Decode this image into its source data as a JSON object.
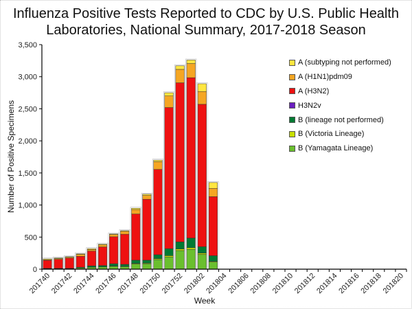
{
  "chart_data": {
    "type": "bar",
    "stacked": true,
    "title": "Influenza Positive Tests Reported to CDC by U.S. Public Health Laboratories, National Summary, 2017-2018 Season",
    "title_lines": [
      "Influenza Positive Tests Reported to CDC by U.S. Public Health",
      "Laboratories, National Summary, 2017-2018 Season"
    ],
    "xlabel": "Week",
    "ylabel": "Number of Positive Specimens",
    "ylim": [
      0,
      3500
    ],
    "yticks": [
      0,
      500,
      1000,
      1500,
      2000,
      2500,
      3000,
      3500
    ],
    "ytick_labels": [
      "0",
      "500",
      "1,000",
      "1,500",
      "2,000",
      "2,500",
      "3,000",
      "3,500"
    ],
    "grid": false,
    "legend_position": "top-right",
    "categories": [
      "201740",
      "201741",
      "201742",
      "201743",
      "201744",
      "201745",
      "201746",
      "201747",
      "201748",
      "201749",
      "201750",
      "201751",
      "201752",
      "201801",
      "201802",
      "201803",
      "201804",
      "201805",
      "201806",
      "201807",
      "201808",
      "201809",
      "201810",
      "201811",
      "201812",
      "201813",
      "201814",
      "201815",
      "201816",
      "201817",
      "201818",
      "201819",
      "201820"
    ],
    "xtick_labels": [
      "201740",
      "201742",
      "201744",
      "201746",
      "201748",
      "201750",
      "201752",
      "201802",
      "201804",
      "201806",
      "201808",
      "201810",
      "201812",
      "201814",
      "201816",
      "201818",
      "201820"
    ],
    "series": [
      {
        "name": "B (Yamagata Lineage)",
        "color": "#6abf2e",
        "values": [
          8,
          8,
          8,
          20,
          30,
          35,
          45,
          40,
          80,
          85,
          150,
          190,
          290,
          310,
          230,
          110,
          0,
          0,
          0,
          0,
          0,
          0,
          0,
          0,
          0,
          0,
          0,
          0,
          0,
          0,
          0,
          0,
          0
        ]
      },
      {
        "name": "B (Victoria Lineage)",
        "color": "#c8e000",
        "values": [
          0,
          0,
          0,
          0,
          2,
          2,
          5,
          5,
          10,
          10,
          15,
          20,
          25,
          25,
          20,
          10,
          0,
          0,
          0,
          0,
          0,
          0,
          0,
          0,
          0,
          0,
          0,
          0,
          0,
          0,
          0,
          0,
          0
        ]
      },
      {
        "name": "B (lineage not performed)",
        "color": "#007a33",
        "values": [
          5,
          5,
          5,
          10,
          20,
          20,
          35,
          30,
          50,
          45,
          60,
          110,
          110,
          150,
          100,
          90,
          0,
          0,
          0,
          0,
          0,
          0,
          0,
          0,
          0,
          0,
          0,
          0,
          0,
          0,
          0,
          0,
          0
        ]
      },
      {
        "name": "H3N2v",
        "color": "#6a1fbf",
        "values": [
          0,
          0,
          0,
          0,
          0,
          0,
          0,
          0,
          0,
          0,
          0,
          0,
          0,
          0,
          0,
          0,
          0,
          0,
          0,
          0,
          0,
          0,
          0,
          0,
          0,
          0,
          0,
          0,
          0,
          0,
          0,
          0,
          0
        ]
      },
      {
        "name": "A (H3N2)",
        "color": "#ee1111",
        "values": [
          125,
          140,
          160,
          170,
          230,
          290,
          420,
          470,
          720,
          950,
          1330,
          2200,
          2480,
          2500,
          2220,
          920,
          0,
          0,
          0,
          0,
          0,
          0,
          0,
          0,
          0,
          0,
          0,
          0,
          0,
          0,
          0,
          0,
          0
        ]
      },
      {
        "name": "A (H1N1)pdm09",
        "color": "#f5a623",
        "values": [
          10,
          12,
          12,
          30,
          25,
          30,
          35,
          45,
          70,
          60,
          120,
          180,
          210,
          220,
          200,
          130,
          0,
          0,
          0,
          0,
          0,
          0,
          0,
          0,
          0,
          0,
          0,
          0,
          0,
          0,
          0,
          0,
          0
        ]
      },
      {
        "name": "A (subtyping not performed)",
        "color": "#ffe640",
        "values": [
          12,
          10,
          10,
          10,
          13,
          13,
          10,
          10,
          20,
          20,
          25,
          50,
          55,
          55,
          120,
          90,
          0,
          0,
          0,
          0,
          0,
          0,
          0,
          0,
          0,
          0,
          0,
          0,
          0,
          0,
          0,
          0,
          0
        ]
      }
    ]
  },
  "legend": {
    "items": [
      {
        "label": "A (subtyping not performed)",
        "color": "#ffe640"
      },
      {
        "label": "A (H1N1)pdm09",
        "color": "#f5a623"
      },
      {
        "label": "A (H3N2)",
        "color": "#ee1111"
      },
      {
        "label": "H3N2v",
        "color": "#6a1fbf"
      },
      {
        "label": "B (lineage not performed)",
        "color": "#007a33"
      },
      {
        "label": "B (Victoria Lineage)",
        "color": "#c8e000"
      },
      {
        "label": "B (Yamagata Lineage)",
        "color": "#6abf2e"
      }
    ]
  }
}
